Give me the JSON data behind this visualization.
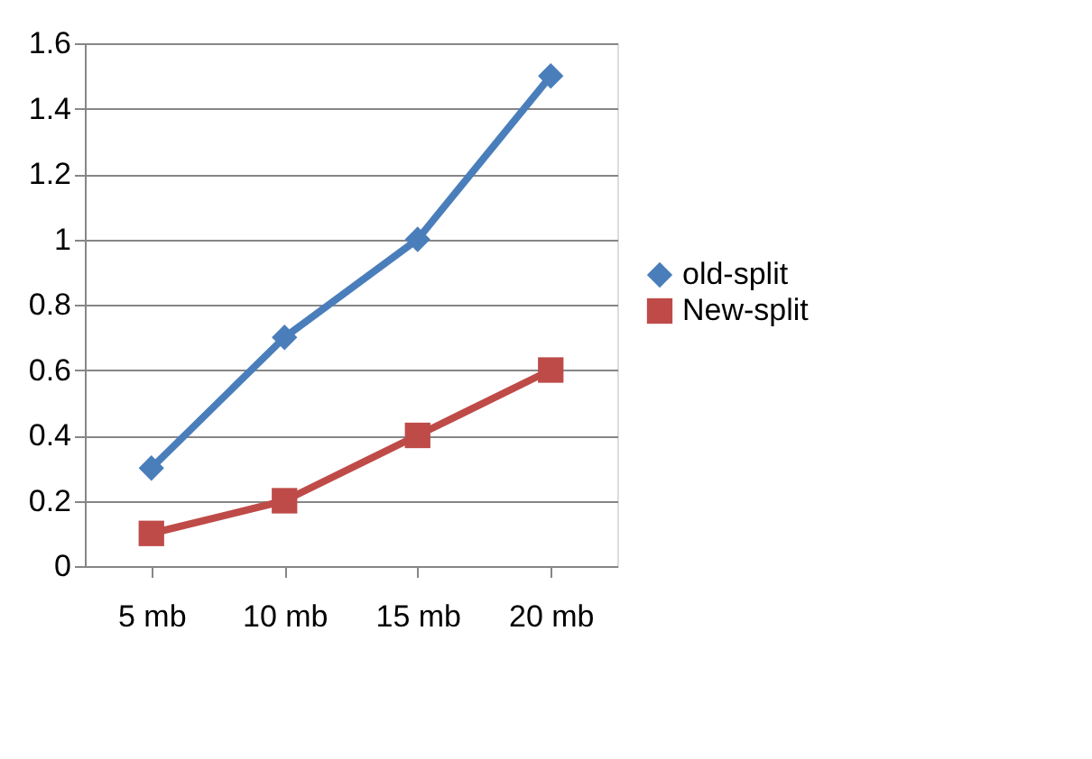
{
  "chart_data": {
    "type": "line",
    "categories": [
      "5 mb",
      "10 mb",
      "15 mb",
      "20 mb"
    ],
    "series": [
      {
        "name": "old-split",
        "color": "#4a7ebb",
        "marker": "diamond",
        "values": [
          0.3,
          0.7,
          1.0,
          1.5
        ]
      },
      {
        "name": "New-split",
        "color": "#be4b48",
        "marker": "square",
        "values": [
          0.1,
          0.2,
          0.4,
          0.6
        ]
      }
    ],
    "ylim": [
      0,
      1.6
    ],
    "yticks": [
      0,
      0.2,
      0.4,
      0.6,
      0.8,
      1,
      1.2,
      1.4,
      1.6
    ],
    "grid": "y",
    "legend": "right",
    "line_style": "solid"
  }
}
